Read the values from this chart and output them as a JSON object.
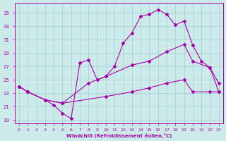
{
  "xlabel": "Windchill (Refroidissement éolien,°C)",
  "bg_color": "#cceaea",
  "grid_color": "#aad4d4",
  "line_color": "#aa00aa",
  "xlim": [
    -0.5,
    23.5
  ],
  "ylim": [
    18.5,
    36.5
  ],
  "yticks": [
    19,
    21,
    23,
    25,
    27,
    29,
    31,
    33,
    35
  ],
  "xticks": [
    0,
    1,
    2,
    3,
    4,
    5,
    6,
    7,
    8,
    9,
    10,
    11,
    12,
    13,
    14,
    15,
    16,
    17,
    18,
    19,
    20,
    21,
    22,
    23
  ],
  "line1_x": [
    0,
    1,
    3,
    4,
    5,
    6,
    7,
    8,
    9,
    10,
    11,
    12,
    13,
    14,
    15,
    16,
    17,
    18,
    19,
    20,
    21,
    22,
    23
  ],
  "line1_y": [
    24.0,
    23.2,
    22.0,
    21.2,
    20.0,
    19.2,
    27.5,
    28.0,
    25.0,
    25.5,
    27.0,
    30.5,
    32.0,
    34.5,
    34.8,
    35.5,
    34.8,
    33.2,
    33.8,
    30.2,
    27.8,
    26.8,
    24.5
  ],
  "line2_x": [
    0,
    1,
    3,
    5,
    8,
    10,
    13,
    15,
    17,
    19,
    20,
    22,
    23
  ],
  "line2_y": [
    24.0,
    23.2,
    22.0,
    21.5,
    24.5,
    25.5,
    27.2,
    27.8,
    29.2,
    30.3,
    27.8,
    26.8,
    23.2
  ],
  "line3_x": [
    0,
    1,
    3,
    5,
    10,
    13,
    15,
    17,
    19,
    20,
    22,
    23
  ],
  "line3_y": [
    24.0,
    23.2,
    22.0,
    21.5,
    22.5,
    23.2,
    23.8,
    24.5,
    25.0,
    23.2,
    23.2,
    23.2
  ]
}
